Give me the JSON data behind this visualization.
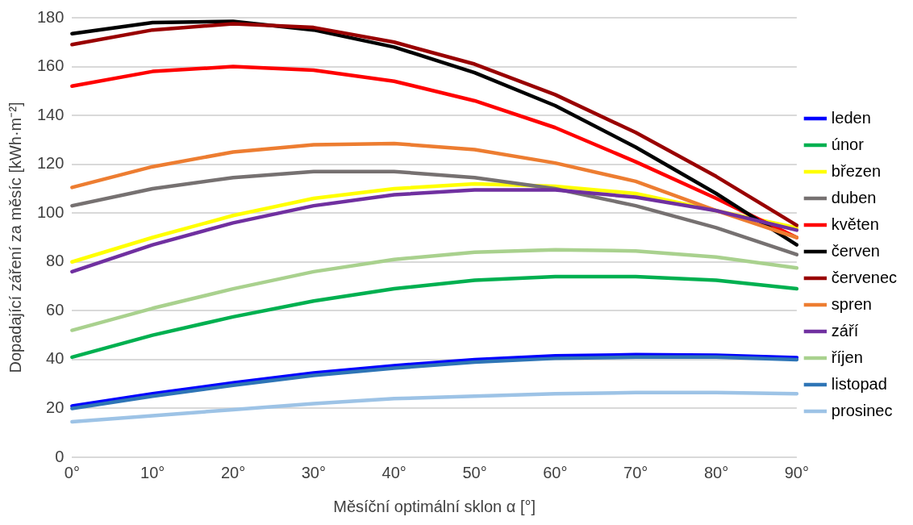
{
  "chart_data": {
    "type": "line",
    "xlabel": "Měsíční optimální sklon α [°]",
    "ylabel": "Dopadající záření za měsíc [kWh·m⁻²]",
    "categories": [
      "0°",
      "10°",
      "20°",
      "30°",
      "40°",
      "50°",
      "60°",
      "70°",
      "80°",
      "90°"
    ],
    "ylim": [
      0,
      180
    ],
    "yticks": [
      0,
      20,
      40,
      60,
      80,
      100,
      120,
      140,
      160,
      180
    ],
    "grid": "y",
    "legend": "right",
    "marker": "none",
    "line_style": "solid",
    "series": [
      {
        "name": "leden",
        "color": "#0000ff",
        "values": [
          21,
          26,
          30.5,
          34.5,
          37.5,
          40,
          41.5,
          42,
          41.8,
          40.8
        ]
      },
      {
        "name": "únor",
        "color": "#00b050",
        "values": [
          41,
          50,
          57.5,
          64,
          69,
          72.5,
          74,
          74,
          72.5,
          69
        ]
      },
      {
        "name": "březen",
        "color": "#ffff00",
        "values": [
          80,
          90,
          99,
          106,
          110,
          112,
          111,
          108,
          101,
          94
        ]
      },
      {
        "name": "duben",
        "color": "#767171",
        "values": [
          103,
          110,
          114.5,
          117,
          117,
          114.5,
          110,
          103,
          94,
          83
        ]
      },
      {
        "name": "květen",
        "color": "#ff0000",
        "values": [
          152,
          158,
          160,
          158.5,
          154,
          146,
          135,
          121,
          106,
          90
        ]
      },
      {
        "name": "červen",
        "color": "#000000",
        "values": [
          173.5,
          178,
          178.5,
          175,
          168,
          157.5,
          144,
          127,
          108,
          87
        ]
      },
      {
        "name": "červenec",
        "color": "#990000",
        "values": [
          169,
          175,
          177.5,
          176,
          170,
          161,
          148.5,
          133,
          115,
          95
        ]
      },
      {
        "name": "spren",
        "color": "#ed7d31",
        "values": [
          110.5,
          119,
          125,
          128,
          128.5,
          126,
          120.5,
          113,
          101,
          90
        ]
      },
      {
        "name": "září",
        "color": "#7030a0",
        "values": [
          76,
          87,
          96,
          103,
          107.5,
          109.5,
          109.5,
          106.5,
          101,
          93
        ]
      },
      {
        "name": "říjen",
        "color": "#a9d18e",
        "values": [
          52,
          61,
          69,
          76,
          81,
          84,
          85,
          84.5,
          82,
          77.5
        ]
      },
      {
        "name": "listopad",
        "color": "#2e75b6",
        "values": [
          20,
          25,
          29.5,
          33.5,
          36.5,
          39,
          40.5,
          41,
          41,
          40
        ]
      },
      {
        "name": "prosinec",
        "color": "#9dc3e6",
        "values": [
          14.5,
          17,
          19.5,
          22,
          24,
          25,
          26,
          26.5,
          26.5,
          26
        ]
      }
    ]
  }
}
